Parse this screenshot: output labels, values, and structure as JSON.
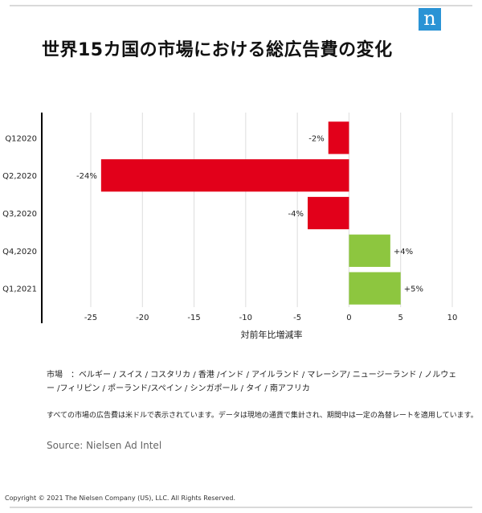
{
  "title": "世界15カ国の市場における総広告費の変化",
  "logo_letter": "n",
  "colors": {
    "negative": "#e2001a",
    "positive": "#8dc63f",
    "grid": "#dddddd",
    "axis": "#000000",
    "logo": "#2a93d5"
  },
  "chart_data": {
    "type": "bar",
    "orientation": "horizontal",
    "categories": [
      "Q12020",
      "Q2,2020",
      "Q3,2020",
      "Q4,2020",
      "Q1,2021"
    ],
    "values": [
      -2,
      -24,
      -4,
      4,
      5
    ],
    "data_labels": [
      "-2%",
      "-24%",
      "-4%",
      "+4%",
      "+5%"
    ],
    "xlabel": "対前年比増減率",
    "xlim": [
      -25,
      10
    ],
    "xticks": [
      -25,
      -20,
      -15,
      -10,
      -5,
      0,
      5,
      10
    ],
    "grid": true
  },
  "notes": {
    "markets": "市場　：ベルギー / スイス / コスタリカ / 香港 /インド / アイルランド / マレーシア/ ニュージーランド / ノルウェー /フィリピン / ポーランド/スペイン / シンガポール / タイ / 南アフリカ",
    "currency": "すべての市場の広告費は米ドルで表示されています。データは現地の通貨で集計され、期間中は一定の為替レートを適用しています。"
  },
  "source": "Source: Nielsen Ad Intel",
  "copyright": "Copyright © 2021 The Nielsen Company (US), LLC. All Rights Reserved."
}
